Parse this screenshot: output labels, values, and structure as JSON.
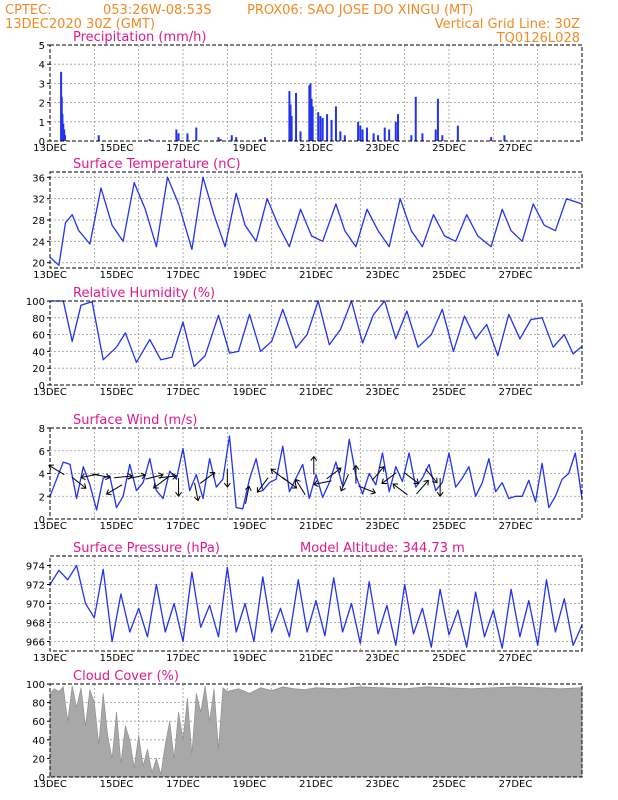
{
  "header": {
    "line1_left": "CPTEC:",
    "line1_coords": "053:26W-08:53S",
    "line1_location": "PROX06: SAO JOSE DO XINGU (MT)",
    "line2_left": "13DEC2020 30Z (GMT)",
    "line2_right": "Vertical Grid Line: 30Z",
    "line3_right": "TQ0126L028"
  },
  "colors": {
    "header": "#f08a24",
    "title": "#e0188c",
    "series": "#2233ee",
    "cloud": "#a8a8a8",
    "arrow": "#000000"
  },
  "days": [
    "13DEC",
    "15DEC",
    "17DEC",
    "19DEC",
    "21DEC",
    "23DEC",
    "25DEC",
    "27DEC"
  ],
  "chart_data": [
    {
      "type": "bar",
      "title": "Precipitation (mm/h)",
      "ylim": [
        0,
        5
      ],
      "yticks": [
        0,
        1,
        2,
        3,
        4,
        5
      ],
      "x": [
        0.5,
        0.53,
        0.56,
        0.6,
        0.64,
        0.68,
        2.2,
        4.5,
        5.7,
        5.8,
        6.2,
        6.6,
        7.6,
        7.7,
        8.2,
        8.4,
        9.5,
        9.7,
        10.8,
        10.85,
        10.9,
        11.1,
        11.3,
        11.7,
        11.75,
        11.8,
        11.85,
        12.1,
        12.2,
        12.3,
        12.5,
        12.7,
        12.9,
        13.1,
        13.3,
        13.9,
        14.0,
        14.1,
        14.3,
        14.6,
        14.8,
        15.1,
        15.3,
        15.6,
        15.7,
        16.3,
        16.5,
        16.8,
        17.4,
        17.5,
        17.7,
        18.4,
        19.9,
        20.5
      ],
      "values": [
        3.6,
        2.3,
        1.4,
        0.9,
        0.6,
        0.3,
        0.3,
        0.1,
        0.6,
        0.4,
        0.4,
        0.7,
        0.2,
        0.1,
        0.3,
        0.2,
        0.1,
        0.2,
        2.6,
        1.9,
        1.3,
        2.5,
        0.5,
        2.9,
        3.0,
        2.2,
        1.8,
        1.5,
        1.3,
        1.2,
        1.4,
        1.1,
        1.8,
        0.5,
        0.3,
        1.0,
        0.8,
        0.6,
        0.7,
        0.4,
        0.3,
        0.7,
        0.6,
        1.0,
        1.4,
        0.3,
        2.3,
        0.4,
        0.6,
        2.2,
        0.3,
        0.8,
        0.2,
        0.3
      ]
    },
    {
      "type": "line",
      "title": "Surface Temperature (nC)",
      "ylim": [
        19,
        37
      ],
      "yticks": [
        20,
        24,
        28,
        32,
        36
      ],
      "x": [
        0,
        0.4,
        0.7,
        1.0,
        1.3,
        1.8,
        2.3,
        2.8,
        3.3,
        3.8,
        4.3,
        4.8,
        5.3,
        5.8,
        6.4,
        6.9,
        7.4,
        7.9,
        8.4,
        8.8,
        9.3,
        9.8,
        10.3,
        10.8,
        11.3,
        11.8,
        12.3,
        12.9,
        13.3,
        13.8,
        14.3,
        14.8,
        15.3,
        15.8,
        16.3,
        16.8,
        17.3,
        17.8,
        18.3,
        18.8,
        19.3,
        19.9,
        20.4,
        20.8,
        21.3,
        21.8,
        22.3,
        22.8,
        23.3,
        24.0
      ],
      "values": [
        21,
        19.5,
        27.5,
        29,
        26,
        23.5,
        34,
        27,
        24,
        35,
        30,
        23,
        36,
        31,
        22.5,
        36,
        29,
        23,
        33,
        27,
        24,
        32,
        27,
        23,
        30,
        25,
        24,
        31,
        26,
        23,
        30,
        26,
        23,
        32,
        26,
        23,
        29,
        25,
        24,
        29,
        25,
        23,
        30,
        26,
        24,
        31,
        27,
        26,
        32,
        31
      ]
    },
    {
      "type": "line",
      "title": "Relative Humidity (%)",
      "ylim": [
        0,
        100
      ],
      "yticks": [
        0,
        20,
        40,
        60,
        80,
        100
      ],
      "x": [
        0,
        0.6,
        1.0,
        1.4,
        1.9,
        2.4,
        3.0,
        3.4,
        3.9,
        4.5,
        5.0,
        5.5,
        6.0,
        6.5,
        7.0,
        7.6,
        8.1,
        8.5,
        9.0,
        9.5,
        10.0,
        10.5,
        11.1,
        11.6,
        12.1,
        12.6,
        13.1,
        13.6,
        14.1,
        14.6,
        15.1,
        15.6,
        16.1,
        16.6,
        17.2,
        17.7,
        18.2,
        18.7,
        19.2,
        19.7,
        20.2,
        20.7,
        21.2,
        21.7,
        22.2,
        22.7,
        23.2,
        23.6,
        24.0
      ],
      "values": [
        100,
        100,
        52,
        95,
        99,
        30,
        45,
        62,
        27,
        54,
        30,
        33,
        75,
        22,
        35,
        83,
        38,
        40,
        84,
        40,
        52,
        90,
        44,
        60,
        100,
        48,
        66,
        100,
        50,
        84,
        100,
        55,
        88,
        45,
        60,
        90,
        40,
        82,
        55,
        72,
        35,
        84,
        55,
        78,
        80,
        45,
        60,
        37,
        46
      ]
    },
    {
      "type": "line",
      "title": "Surface Wind (m/s)",
      "ylim": [
        0,
        8
      ],
      "yticks": [
        0,
        2,
        4,
        6,
        8
      ],
      "x": [
        0,
        0.3,
        0.6,
        0.9,
        1.2,
        1.5,
        1.8,
        2.1,
        2.4,
        2.7,
        3.0,
        3.3,
        3.6,
        3.9,
        4.2,
        4.5,
        4.8,
        5.1,
        5.4,
        5.7,
        6.0,
        6.3,
        6.6,
        6.9,
        7.2,
        7.5,
        7.8,
        8.1,
        8.4,
        8.7,
        9.0,
        9.3,
        9.6,
        9.9,
        10.2,
        10.5,
        10.8,
        11.1,
        11.4,
        11.7,
        12.0,
        12.3,
        12.6,
        12.9,
        13.2,
        13.5,
        13.8,
        14.1,
        14.4,
        14.7,
        15.0,
        15.3,
        15.6,
        15.9,
        16.2,
        16.5,
        16.8,
        17.1,
        17.4,
        17.7,
        18.0,
        18.3,
        18.6,
        18.9,
        19.2,
        19.5,
        19.8,
        20.1,
        20.4,
        20.7,
        21.0,
        21.3,
        21.6,
        21.9,
        22.2,
        22.5,
        22.8,
        23.1,
        23.4,
        23.7,
        24.0
      ],
      "values": [
        2,
        3.5,
        5.0,
        4.8,
        1.8,
        4.6,
        3.0,
        0.8,
        3.6,
        3.8,
        1.0,
        2.0,
        4.8,
        2.5,
        3.2,
        5.3,
        2.5,
        1.8,
        4.2,
        3.5,
        6.2,
        2.5,
        3.9,
        1.8,
        5.3,
        2.8,
        3.5,
        7.3,
        1.0,
        0.9,
        3.5,
        5.3,
        2.5,
        3.2,
        3.5,
        6.4,
        2.4,
        3.6,
        4.8,
        1.8,
        3.9,
        1.9,
        3.2,
        5.0,
        2.9,
        7.0,
        3.8,
        2.2,
        4.0,
        3.0,
        5.8,
        2.4,
        4.6,
        3.3,
        5.8,
        2.8,
        3.6,
        4.8,
        2.5,
        3.2,
        5.8,
        2.8,
        3.6,
        4.6,
        2.0,
        3.2,
        5.3,
        2.4,
        3.2,
        1.8,
        2.0,
        2.0,
        3.4,
        1.5,
        4.9,
        1.0,
        2.0,
        3.5,
        4.0,
        5.8,
        1.8
      ]
    },
    {
      "type": "line",
      "title": "Surface Pressure (hPa)",
      "annotation": "Model Altitude: 344.73 m",
      "ylim": [
        965,
        975
      ],
      "yticks": [
        966,
        968,
        970,
        972,
        974
      ],
      "x": [
        0,
        0.4,
        0.8,
        1.2,
        1.6,
        2.0,
        2.4,
        2.8,
        3.2,
        3.6,
        4.0,
        4.4,
        4.8,
        5.2,
        5.6,
        6.0,
        6.4,
        6.8,
        7.2,
        7.6,
        8.0,
        8.4,
        8.8,
        9.2,
        9.6,
        10.0,
        10.4,
        10.8,
        11.2,
        11.6,
        12.0,
        12.4,
        12.8,
        13.2,
        13.6,
        14.0,
        14.4,
        14.8,
        15.2,
        15.6,
        16.0,
        16.4,
        16.8,
        17.2,
        17.6,
        18.0,
        18.4,
        18.8,
        19.2,
        19.6,
        20.0,
        20.4,
        20.8,
        21.2,
        21.6,
        22.0,
        22.4,
        22.8,
        23.2,
        23.6,
        24.0
      ],
      "values": [
        972,
        973.5,
        972.5,
        974,
        970,
        968.5,
        973.6,
        966,
        971,
        967,
        969.5,
        966.5,
        972,
        967,
        970,
        966,
        973.3,
        967.5,
        969.8,
        966.5,
        973.8,
        967,
        970,
        966,
        972.8,
        967,
        969.5,
        966.5,
        972.5,
        967,
        970.3,
        966.6,
        972.7,
        967,
        970,
        965.8,
        972.3,
        966.8,
        969.8,
        965.6,
        972,
        966.8,
        969.5,
        965.4,
        971.5,
        966.7,
        969.3,
        965.4,
        971.2,
        966.5,
        969.3,
        965.3,
        971.5,
        966.5,
        970.3,
        965.6,
        972.5,
        967,
        970.5,
        965.6,
        967.7
      ]
    },
    {
      "type": "area",
      "title": "Cloud Cover (%)",
      "ylim": [
        0,
        100
      ],
      "yticks": [
        0,
        20,
        40,
        60,
        80,
        100
      ],
      "x": [
        0,
        0.2,
        0.4,
        0.6,
        0.8,
        1.0,
        1.2,
        1.4,
        1.6,
        1.8,
        2.0,
        2.2,
        2.4,
        2.6,
        2.8,
        3.0,
        3.2,
        3.4,
        3.6,
        3.8,
        4.0,
        4.2,
        4.4,
        4.6,
        4.8,
        5.0,
        5.2,
        5.4,
        5.6,
        5.8,
        6.0,
        6.2,
        6.4,
        6.6,
        6.8,
        7.0,
        7.2,
        7.4,
        7.6,
        7.8,
        8.0,
        8.5,
        9.0,
        9.5,
        10.0,
        10.5,
        11.0,
        11.5,
        12.0,
        13.0,
        14.0,
        15.0,
        16.0,
        17.0,
        18.0,
        19.0,
        20.0,
        21.0,
        22.0,
        23.0,
        24.0
      ],
      "values": [
        90,
        95,
        92,
        97,
        60,
        98,
        75,
        96,
        55,
        94,
        80,
        35,
        90,
        45,
        20,
        70,
        15,
        55,
        40,
        10,
        45,
        12,
        30,
        5,
        20,
        3,
        35,
        60,
        20,
        70,
        40,
        85,
        25,
        90,
        70,
        98,
        60,
        95,
        30,
        96,
        92,
        95,
        90,
        96,
        93,
        97,
        95,
        94,
        96,
        95,
        97,
        96,
        95,
        97,
        96,
        95,
        96,
        97,
        96,
        95,
        96
      ]
    }
  ],
  "wind_arrows": {
    "x": [
      0.3,
      1.3,
      1.8,
      2.3,
      2.9,
      3.3,
      3.9,
      4.7,
      5.0,
      5.3,
      5.8,
      6.6,
      7.1,
      8.0,
      8.9,
      9.6,
      10.3,
      10.8,
      11.3,
      11.9,
      12.3,
      12.8,
      13.3,
      13.8,
      14.3,
      14.8,
      15.3,
      15.8,
      16.3,
      16.8,
      17.2,
      17.6
    ],
    "y": [
      4.3,
      3.2,
      3.8,
      3.8,
      2.6,
      3.7,
      3.7,
      3.7,
      3.2,
      3.7,
      2.8,
      2.4,
      3.6,
      3.6,
      2.1,
      3.0,
      3.9,
      3.2,
      2.8,
      4.7,
      3.2,
      4.0,
      3.2,
      3.9,
      2.6,
      4.0,
      3.6,
      2.6,
      3.6,
      2.8,
      3.8,
      2.8
    ],
    "dx": [
      -1,
      1,
      -1,
      1,
      -1,
      1,
      1,
      0.8,
      -0.8,
      1,
      0,
      0.2,
      0.8,
      0,
      0.2,
      -0.6,
      -0.8,
      0.8,
      -0.5,
      0,
      -1,
      0.8,
      -0.4,
      0,
      1,
      0.7,
      -0.8,
      -0.8,
      0.8,
      0.7,
      0.5,
      0
    ],
    "dy": [
      0.6,
      -0.8,
      -0.2,
      -0.2,
      -0.6,
      0.1,
      0.2,
      0.2,
      -0.6,
      0.1,
      -1,
      -1,
      0.6,
      -1,
      1,
      -0.8,
      0.6,
      -0.6,
      0.8,
      1,
      -0.2,
      0.6,
      -0.9,
      1,
      -0.4,
      0.8,
      -0.6,
      0.6,
      -0.6,
      0.8,
      -0.6,
      -1
    ]
  }
}
